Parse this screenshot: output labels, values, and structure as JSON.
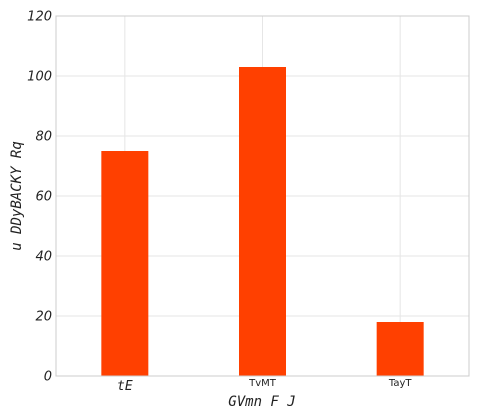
{
  "chart_data": {
    "type": "bar",
    "categories": [
      "tE",
      "TvMT",
      "TayT"
    ],
    "values": [
      75,
      103,
      18
    ],
    "xlabel": "GVmn F   J",
    "ylabel": "u DDyBACKY Rq",
    "ylim": [
      0,
      120
    ],
    "yticks": [
      0,
      20,
      40,
      60,
      80,
      100,
      120
    ],
    "bar_color": "#ff4000",
    "grid": true,
    "legend": "none"
  }
}
